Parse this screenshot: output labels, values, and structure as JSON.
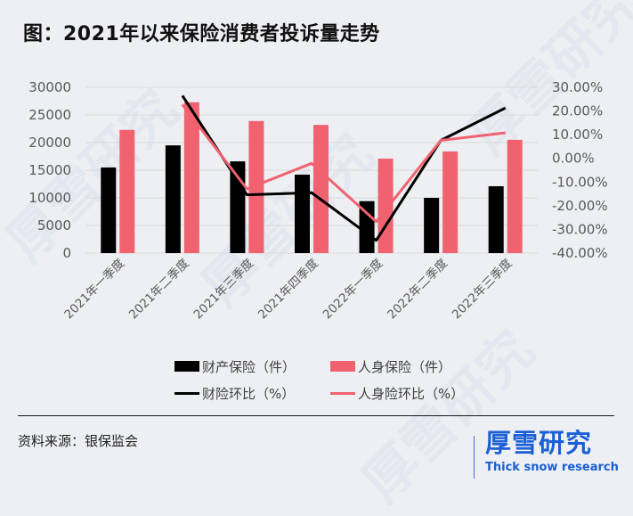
{
  "title": "图：2021年以来保险消费者投诉量走势",
  "source": "资料来源：银保监会",
  "brand": {
    "cn": "厚雪研究",
    "en": "Thick snow research"
  },
  "watermark": {
    "cn": "厚雪研究",
    "en": "Thick snow research"
  },
  "colors": {
    "property": "#000000",
    "life": "#f0626f",
    "brand": "#1a5fd6",
    "background": "#eeeff3",
    "grid": "#d9d9d9"
  },
  "legend": {
    "items": [
      {
        "label": "财产保险（件）",
        "type": "bar",
        "color": "#000000"
      },
      {
        "label": "人身保险（件）",
        "type": "bar",
        "color": "#f0626f"
      },
      {
        "label": "财险环比（%）",
        "type": "line",
        "color": "#000000"
      },
      {
        "label": "人身险环比（%）",
        "type": "line",
        "color": "#f0626f"
      }
    ]
  },
  "chart_data": {
    "type": "bar",
    "title": "图：2021年以来保险消费者投诉量走势",
    "xlabel": "",
    "ylabel": "",
    "categories": [
      "2021年一季度",
      "2021年二季度",
      "2021年三季度",
      "2021年四季度",
      "2022年一季度",
      "2022年二季度",
      "2022年三季度"
    ],
    "series": [
      {
        "name": "财产保险（件）",
        "type": "bar",
        "axis": "left",
        "color": "#000000",
        "values": [
          15500,
          19500,
          16600,
          14200,
          9400,
          10000,
          12100
        ]
      },
      {
        "name": "人身保险（件）",
        "type": "bar",
        "axis": "left",
        "color": "#f0626f",
        "values": [
          22300,
          27300,
          23900,
          23200,
          17100,
          18400,
          20500
        ]
      },
      {
        "name": "财险环比（%）",
        "type": "line",
        "axis": "right",
        "color": "#000000",
        "values": [
          null,
          26.5,
          -15.4,
          -14.5,
          -34.6,
          7.6,
          21.3
        ]
      },
      {
        "name": "人身险环比（%）",
        "type": "line",
        "axis": "right",
        "color": "#f0626f",
        "values": [
          null,
          22.7,
          -12.9,
          -2.1,
          -26.7,
          7.6,
          10.8
        ]
      }
    ],
    "ylim": [
      0,
      30000
    ],
    "y_ticks": [
      "30000",
      "25000",
      "20000",
      "15000",
      "10000",
      "5000",
      "0"
    ],
    "y2lim": [
      -40,
      30
    ],
    "y2_ticks": [
      "30.00%",
      "20.00%",
      "10.00%",
      "0.00%",
      "-10.00%",
      "-20.00%",
      "-30.00%",
      "-40.00%"
    ],
    "grid": true,
    "legend_position": "bottom"
  }
}
